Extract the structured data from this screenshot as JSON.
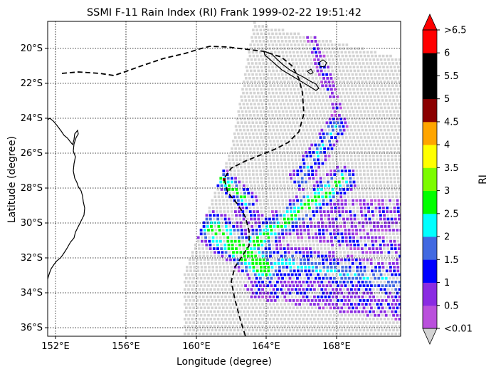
{
  "title": "SSMI F-11 Rain Index (RI) Frank 1999-02-22 19:51:42",
  "xlabel": "Longitude (degree)",
  "ylabel": "Latitude (degree)",
  "colorbar_label": "RI",
  "x_ticks": [
    "152°E",
    "156°E",
    "160°E",
    "164°E",
    "168°E"
  ],
  "y_ticks": [
    "20°S",
    "22°S",
    "24°S",
    "26°S",
    "28°S",
    "30°S",
    "32°S",
    "34°S",
    "36°S"
  ],
  "colorbar": {
    "tick_labels": [
      ">6.5",
      "6",
      "5.5",
      "5",
      "4.5",
      "4",
      "3.5",
      "3",
      "2.5",
      "2",
      "1.5",
      "1",
      "0.5",
      "<0.01"
    ],
    "colors": [
      "#ba50dc",
      "#8a2be2",
      "#0000ff",
      "#4169e1",
      "#00ffff",
      "#00ff00",
      "#7cfc00",
      "#ffff00",
      "#ffa500",
      "#8b0000",
      "#000000",
      "#000000",
      "#ff0000"
    ],
    "under_color": "#d3d3d3",
    "over_color": "#ff0000"
  },
  "map": {
    "lon_range": [
      151.5,
      171.8
    ],
    "lat_range": [
      -36.4,
      -18.5
    ],
    "gridlines": "dotted",
    "swath_color": "#d3d3d3",
    "coastline_color": "#000000",
    "track_style": "dashed"
  }
}
